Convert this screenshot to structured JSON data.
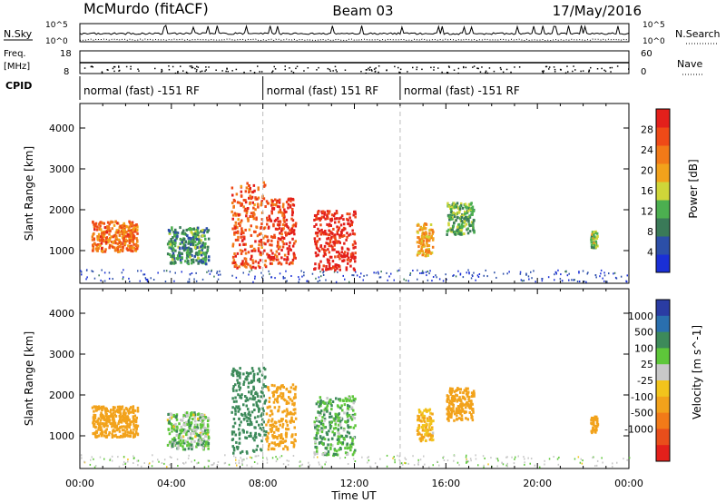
{
  "header": {
    "title_left": "McMurdo (fitACF)",
    "title_center": "Beam 03",
    "title_right": "17/May/2016"
  },
  "aux_panels": {
    "nsky_label": "N.Sky",
    "nsearch_label": "N.Search",
    "nsky_ticks": [
      "10^5",
      "10^0"
    ],
    "nsearch_ticks": [
      "10^5",
      "10^0"
    ],
    "freq_label_line1": "Freq.",
    "freq_label_line2": "[MHz]",
    "freq_ticks": [
      "18",
      "8"
    ],
    "nave_label": "Nave",
    "nave_ticks": [
      "60",
      "0"
    ],
    "cpid_label": "CPID",
    "cpid_segments": [
      {
        "label": "normal (fast) -151 RF",
        "start_hour": 0
      },
      {
        "label": "normal (fast) 151 RF",
        "start_hour": 8
      },
      {
        "label": "normal (fast) -151 RF",
        "start_hour": 14
      }
    ]
  },
  "chart_data": [
    {
      "type": "heatmap",
      "title": "",
      "xlabel": "",
      "ylabel": "Slant Range [km]",
      "xlim": [
        0,
        24
      ],
      "ylim": [
        200,
        4600
      ],
      "y_ticks": [
        "1000",
        "2000",
        "3000",
        "4000"
      ],
      "colorbar": {
        "label": "Power [dB]",
        "range": [
          0,
          32
        ],
        "ticks": [
          "4",
          "8",
          "12",
          "16",
          "20",
          "24",
          "28"
        ],
        "colors": [
          "#1a2fd6",
          "#2c4fa8",
          "#3a7a58",
          "#4caf50",
          "#cfd639",
          "#f2a21b",
          "#f27a18",
          "#ef4a17",
          "#e3201b"
        ]
      },
      "echo_regions": [
        {
          "x": [
            0.5,
            2.5
          ],
          "y": [
            1000,
            1750
          ],
          "value": 24
        },
        {
          "x": [
            3.8,
            5.6
          ],
          "y": [
            700,
            1600
          ],
          "value": 10
        },
        {
          "x": [
            6.6,
            8.1
          ],
          "y": [
            600,
            2700
          ],
          "value": 26
        },
        {
          "x": [
            8.1,
            9.4
          ],
          "y": [
            700,
            2300
          ],
          "value": 28
        },
        {
          "x": [
            10.2,
            12.0
          ],
          "y": [
            550,
            2000
          ],
          "value": 30
        },
        {
          "x": [
            14.7,
            15.4
          ],
          "y": [
            900,
            1700
          ],
          "value": 20
        },
        {
          "x": [
            16.0,
            17.2
          ],
          "y": [
            1400,
            2200
          ],
          "value": 12
        },
        {
          "x": [
            22.3,
            22.6
          ],
          "y": [
            1100,
            1500
          ],
          "value": 14
        }
      ]
    },
    {
      "type": "heatmap",
      "title": "",
      "xlabel": "Time UT",
      "ylabel": "Slant Range [km]",
      "xlim": [
        0,
        24
      ],
      "ylim": [
        200,
        4600
      ],
      "x_ticks": [
        "00:00",
        "04:00",
        "08:00",
        "12:00",
        "16:00",
        "20:00",
        "00:00"
      ],
      "y_ticks": [
        "1000",
        "2000",
        "3000",
        "4000"
      ],
      "colorbar": {
        "label": "Velocity [m s^-1]",
        "levels": [
          "1000",
          "500",
          "100",
          "25",
          "-25",
          "-100",
          "-500",
          "-1000"
        ],
        "colors": [
          "#2a3ca3",
          "#2a6fae",
          "#3d8a5a",
          "#5ec73a",
          "#c8c8c8",
          "#f2c41c",
          "#f2a21b",
          "#f27a18",
          "#e94e1b",
          "#e3201b"
        ]
      },
      "echo_regions": [
        {
          "x": [
            0.5,
            2.5
          ],
          "y": [
            1000,
            1750
          ],
          "value": -300
        },
        {
          "x": [
            3.8,
            5.6
          ],
          "y": [
            700,
            1600
          ],
          "value": 50
        },
        {
          "x": [
            6.6,
            8.1
          ],
          "y": [
            600,
            2700
          ],
          "value": 200
        },
        {
          "x": [
            8.1,
            9.4
          ],
          "y": [
            700,
            2300
          ],
          "value": -200
        },
        {
          "x": [
            10.2,
            12.0
          ],
          "y": [
            550,
            2000
          ],
          "value": 80
        },
        {
          "x": [
            14.7,
            15.4
          ],
          "y": [
            900,
            1700
          ],
          "value": -100
        },
        {
          "x": [
            16.0,
            17.2
          ],
          "y": [
            1400,
            2200
          ],
          "value": -300
        },
        {
          "x": [
            22.3,
            22.6
          ],
          "y": [
            1100,
            1500
          ],
          "value": -200
        }
      ]
    }
  ]
}
